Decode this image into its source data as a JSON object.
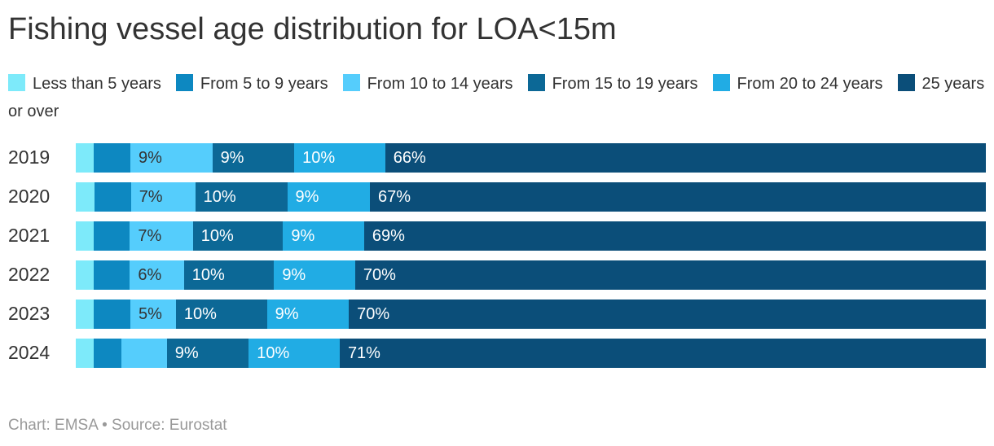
{
  "title": "Fishing vessel age distribution for LOA<15m",
  "footer": "Chart: EMSA • Source: Eurostat",
  "chart_data": {
    "type": "bar",
    "orientation": "horizontal",
    "stacked": true,
    "unit": "percent",
    "title": "Fishing vessel age distribution for LOA<15m",
    "categories": [
      "2019",
      "2020",
      "2021",
      "2022",
      "2023",
      "2024"
    ],
    "xlim": [
      0,
      100
    ],
    "grid": false,
    "legend_position": "top",
    "value_label_style": "inside-left",
    "series": [
      {
        "name": "Less than 5 years",
        "color": "#7DEAFA",
        "label_color": "#333333",
        "values": [
          2,
          2,
          2,
          2,
          2,
          2
        ],
        "labels": [
          "",
          "",
          "",
          "",
          "",
          ""
        ]
      },
      {
        "name": "From 5 to 9 years",
        "color": "#0D88C1",
        "label_color": "#ffffff",
        "values": [
          4,
          4,
          4,
          4,
          4,
          3
        ],
        "labels": [
          "",
          "",
          "",
          "",
          "",
          ""
        ]
      },
      {
        "name": "From 10 to 14 years",
        "color": "#55CDFC",
        "label_color": "#333333",
        "values": [
          9,
          7,
          7,
          6,
          5,
          5
        ],
        "labels": [
          "9%",
          "7%",
          "7%",
          "6%",
          "5%",
          ""
        ]
      },
      {
        "name": "From 15 to 19 years",
        "color": "#0C6896",
        "label_color": "#ffffff",
        "values": [
          9,
          10,
          10,
          10,
          10,
          9
        ],
        "labels": [
          "9%",
          "10%",
          "10%",
          "10%",
          "10%",
          "9%"
        ]
      },
      {
        "name": "From 20 to 24 years",
        "color": "#21ACE4",
        "label_color": "#ffffff",
        "values": [
          10,
          9,
          9,
          9,
          9,
          10
        ],
        "labels": [
          "10%",
          "9%",
          "9%",
          "9%",
          "9%",
          "10%"
        ]
      },
      {
        "name": "25 years or over",
        "color": "#0B4E79",
        "label_color": "#ffffff",
        "values": [
          66,
          67,
          69,
          70,
          70,
          71
        ],
        "labels": [
          "66%",
          "67%",
          "69%",
          "70%",
          "70%",
          "71%"
        ]
      }
    ]
  }
}
